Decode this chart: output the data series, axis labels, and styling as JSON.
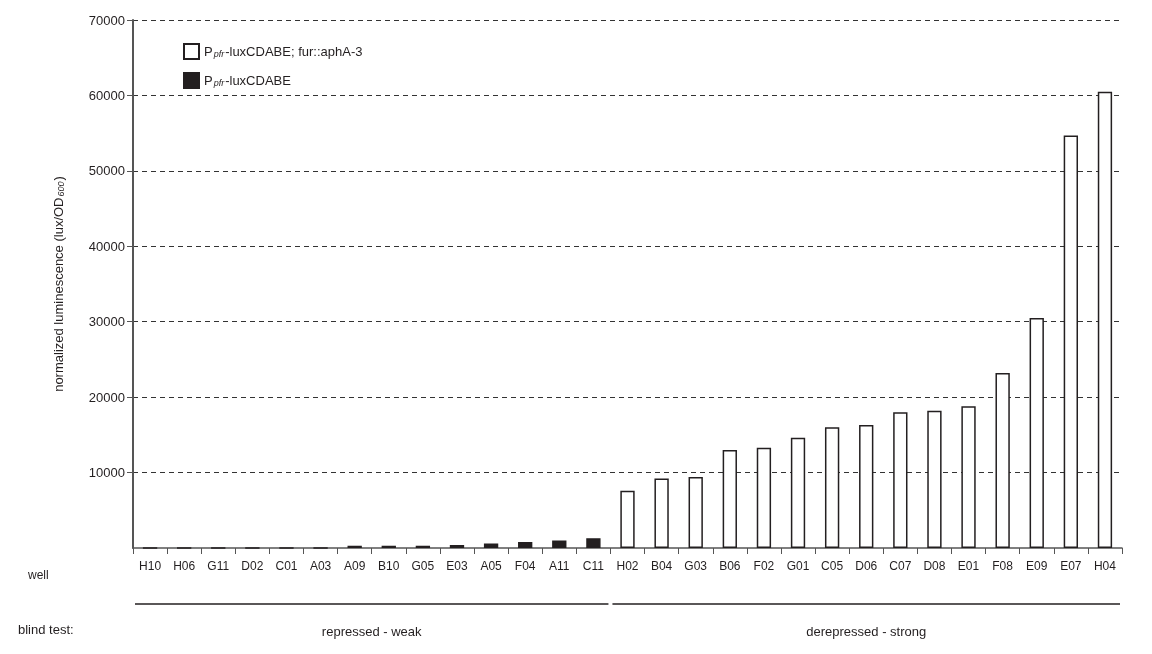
{
  "chart_data": {
    "type": "bar",
    "ylabel": "normalized luminescence (lux/OD$_{600}$)",
    "categories": [
      "H10",
      "H06",
      "G11",
      "D02",
      "C01",
      "A03",
      "A09",
      "B10",
      "G05",
      "E03",
      "A05",
      "F04",
      "A11",
      "C11",
      "H02",
      "B04",
      "G03",
      "B06",
      "F02",
      "G01",
      "C05",
      "D06",
      "C07",
      "D08",
      "E01",
      "F08",
      "E09",
      "E07",
      "H04"
    ],
    "series": [
      {
        "name": "P$_{pfr}$-luxCDABE; fur::aphA-3",
        "color": "#ffffff",
        "values": [
          null,
          null,
          null,
          null,
          null,
          null,
          null,
          null,
          null,
          null,
          null,
          null,
          null,
          null,
          7600,
          9200,
          9400,
          13000,
          13300,
          14600,
          16000,
          16300,
          18000,
          18200,
          18800,
          23200,
          30500,
          54700,
          60500
        ]
      },
      {
        "name": "P$_{pfr}$-luxCDABE",
        "color": "#231f20",
        "values": [
          0,
          0,
          0,
          0,
          0,
          0,
          300,
          300,
          300,
          400,
          600,
          800,
          1000,
          1300,
          null,
          null,
          null,
          null,
          null,
          null,
          null,
          null,
          null,
          null,
          null,
          null,
          null,
          null,
          null
        ]
      }
    ],
    "ylim": [
      0,
      70000
    ],
    "yticks": [
      10000,
      20000,
      30000,
      40000,
      50000,
      60000,
      70000
    ],
    "grid": "y",
    "legend": "top left",
    "annotations": [
      "well",
      "blind test:",
      "repressed - weak",
      "derepressed - strong"
    ]
  }
}
